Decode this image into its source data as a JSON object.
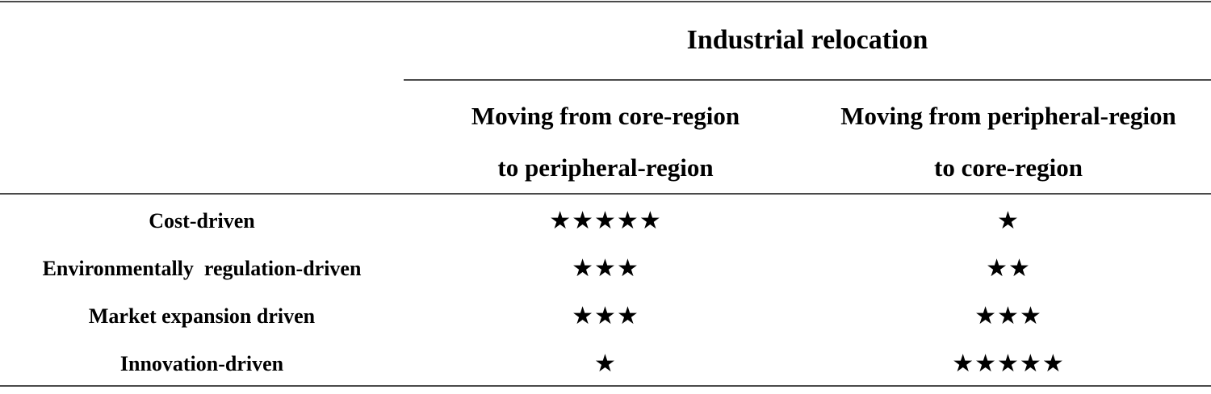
{
  "table": {
    "group_header": "Industrial relocation",
    "columns": [
      {
        "line1": "Moving from core-region",
        "line2": "to peripheral-region"
      },
      {
        "line1": "Moving from peripheral-region",
        "line2": "to core-region"
      }
    ],
    "rows": [
      {
        "label": "Cost-driven",
        "core_to_peripheral": "★★★★★",
        "peripheral_to_core": "★"
      },
      {
        "label": "Environmentally  regulation-driven",
        "core_to_peripheral": "★★★",
        "peripheral_to_core": "★★"
      },
      {
        "label": "Market expansion driven",
        "core_to_peripheral": "★★★",
        "peripheral_to_core": "★★★"
      },
      {
        "label": "Innovation-driven",
        "core_to_peripheral": "★",
        "peripheral_to_core": "★★★★★"
      }
    ],
    "ratings": [
      {
        "core_to_peripheral": 5,
        "peripheral_to_core": 1
      },
      {
        "core_to_peripheral": 3,
        "peripheral_to_core": 2
      },
      {
        "core_to_peripheral": 3,
        "peripheral_to_core": 3
      },
      {
        "core_to_peripheral": 1,
        "peripheral_to_core": 5
      }
    ],
    "star_icon": "black-star-icon"
  }
}
